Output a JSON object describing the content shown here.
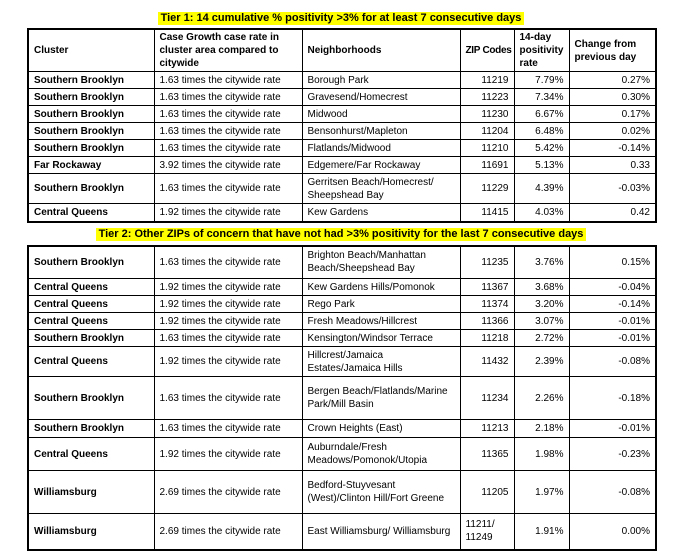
{
  "colors": {
    "highlight": "#ffff00",
    "border": "#000000",
    "text": "#000000",
    "background": "#ffffff"
  },
  "columns": [
    "Cluster",
    "Case Growth case rate in cluster area compared to citywide",
    "Neighborhoods",
    "ZIP Codes",
    "14-day positivity rate",
    "Change from previous day"
  ],
  "tier1": {
    "caption": "Tier 1:  14 cumulative % positivity >3% for at least 7 consecutive days",
    "rows": [
      {
        "cluster": "Southern Brooklyn",
        "case_growth": "1.63 times the citywide rate",
        "neighborhoods": "Borough Park",
        "zip": "11219",
        "positivity": "7.79%",
        "change": "0.27%"
      },
      {
        "cluster": "Southern Brooklyn",
        "case_growth": "1.63 times the citywide rate",
        "neighborhoods": "Gravesend/Homecrest",
        "zip": "11223",
        "positivity": "7.34%",
        "change": "0.30%"
      },
      {
        "cluster": "Southern Brooklyn",
        "case_growth": "1.63 times the citywide rate",
        "neighborhoods": "Midwood",
        "zip": "11230",
        "positivity": "6.67%",
        "change": "0.17%"
      },
      {
        "cluster": "Southern Brooklyn",
        "case_growth": "1.63 times the citywide rate",
        "neighborhoods": "Bensonhurst/Mapleton",
        "zip": "11204",
        "positivity": "6.48%",
        "change": "0.02%"
      },
      {
        "cluster": "Southern Brooklyn",
        "case_growth": "1.63 times the citywide rate",
        "neighborhoods": "Flatlands/Midwood",
        "zip": "11210",
        "positivity": "5.42%",
        "change": "-0.14%"
      },
      {
        "cluster": "Far Rockaway",
        "case_growth": "3.92 times the citywide rate",
        "neighborhoods": "Edgemere/Far Rockaway",
        "zip": "11691",
        "positivity": "5.13%",
        "change": "0.33"
      },
      {
        "cluster": "Southern Brooklyn",
        "case_growth": "1.63 times the citywide rate",
        "neighborhoods": "Gerritsen Beach/Homecrest/ Sheepshead Bay",
        "zip": "11229",
        "positivity": "4.39%",
        "change": "-0.03%"
      },
      {
        "cluster": "Central Queens",
        "case_growth": "1.92 times the citywide rate",
        "neighborhoods": "Kew Gardens",
        "zip": "11415",
        "positivity": "4.03%",
        "change": "0.42"
      }
    ]
  },
  "tier2": {
    "caption": "Tier 2: Other  ZIPs of concern that have not had >3% positivity for the last 7 consecutive days",
    "rows": [
      {
        "cluster": "Southern Brooklyn",
        "case_growth": "1.63 times the citywide rate",
        "neighborhoods": "Brighton Beach/Manhattan Beach/Sheepshead Bay",
        "zip": "11235",
        "positivity": "3.76%",
        "change": "0.15%"
      },
      {
        "cluster": "Central Queens",
        "case_growth": "1.92 times the citywide rate",
        "neighborhoods": "Kew Gardens Hills/Pomonok",
        "zip": "11367",
        "positivity": "3.68%",
        "change": "-0.04%"
      },
      {
        "cluster": "Central Queens",
        "case_growth": "1.92 times the citywide rate",
        "neighborhoods": "Rego Park",
        "zip": "11374",
        "positivity": "3.20%",
        "change": "-0.14%"
      },
      {
        "cluster": "Central Queens",
        "case_growth": "1.92 times the citywide rate",
        "neighborhoods": "Fresh Meadows/Hillcrest",
        "zip": "11366",
        "positivity": "3.07%",
        "change": "-0.01%"
      },
      {
        "cluster": "Southern Brooklyn",
        "case_growth": "1.63 times the citywide rate",
        "neighborhoods": "Kensington/Windsor Terrace",
        "zip": "11218",
        "positivity": "2.72%",
        "change": "-0.01%"
      },
      {
        "cluster": "Central Queens",
        "case_growth": "1.92 times the citywide rate",
        "neighborhoods": "Hillcrest/Jamaica Estates/Jamaica Hills",
        "zip": "11432",
        "positivity": "2.39%",
        "change": "-0.08%"
      },
      {
        "cluster": "Southern Brooklyn",
        "case_growth": "1.63 times the citywide rate",
        "neighborhoods": "Bergen Beach/Flatlands/Marine Park/Mill Basin",
        "zip": "11234",
        "positivity": "2.26%",
        "change": "-0.18%"
      },
      {
        "cluster": "Southern Brooklyn",
        "case_growth": "1.63 times the citywide rate",
        "neighborhoods": "Crown Heights (East)",
        "zip": "11213",
        "positivity": "2.18%",
        "change": "-0.01%"
      },
      {
        "cluster": "Central Queens",
        "case_growth": "1.92 times the citywide rate",
        "neighborhoods": "Auburndale/Fresh Meadows/Pomonok/Utopia",
        "zip": "11365",
        "positivity": "1.98%",
        "change": "-0.23%"
      },
      {
        "cluster": "Williamsburg",
        "case_growth": "2.69 times the citywide rate",
        "neighborhoods": "Bedford-Stuyvesant (West)/Clinton Hill/Fort Greene",
        "zip": "11205",
        "positivity": "1.97%",
        "change": "-0.08%"
      },
      {
        "cluster": "Williamsburg",
        "case_growth": "2.69 times the citywide rate",
        "neighborhoods": "East Williamsburg/ Williamsburg",
        "zip": "11211/ 11249",
        "positivity": "1.91%",
        "change": "0.00%"
      }
    ]
  }
}
